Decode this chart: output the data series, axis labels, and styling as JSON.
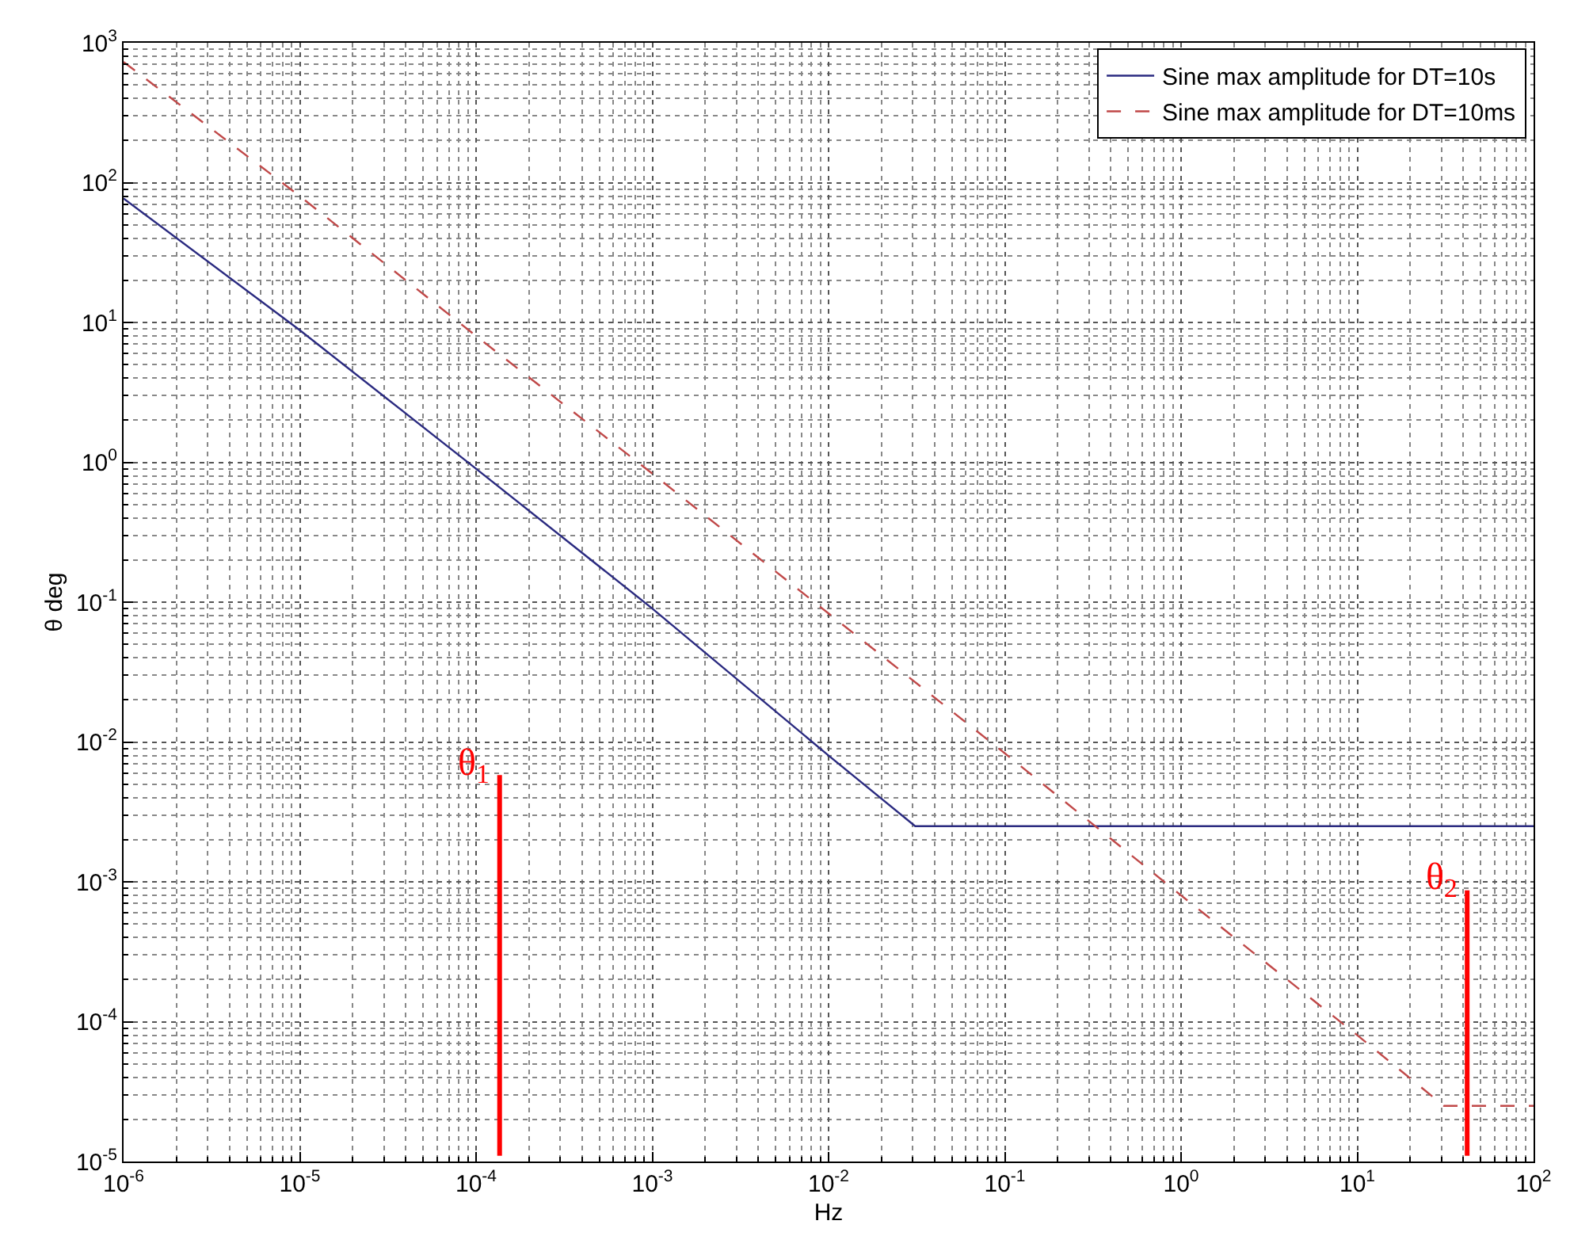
{
  "chart_data": {
    "type": "line",
    "xlabel": "Hz",
    "ylabel": "θ deg",
    "log": "xy",
    "grid": true,
    "legend": "top right",
    "marker": "none",
    "xlim": [
      1e-06,
      100
    ],
    "ylim": [
      1e-05,
      1000
    ],
    "xticks": [
      {
        "value": 1e-06,
        "label": "10$^{-6}$"
      },
      {
        "value": 1e-05,
        "label": "10$^{-5}$"
      },
      {
        "value": 0.0001,
        "label": "10$^{-4}$"
      },
      {
        "value": 0.001,
        "label": "10$^{-3}$"
      },
      {
        "value": 0.01,
        "label": "10$^{-2}$"
      },
      {
        "value": 0.1,
        "label": "10$^{-1}$"
      },
      {
        "value": 1,
        "label": "10$^{0}$"
      },
      {
        "value": 10,
        "label": "10$^{1}$"
      },
      {
        "value": 100,
        "label": "10$^{2}$"
      }
    ],
    "yticks": [
      {
        "value": 1e-05,
        "label": "10$^{-5}$"
      },
      {
        "value": 0.0001,
        "label": "10$^{-4}$"
      },
      {
        "value": 0.001,
        "label": "10$^{-3}$"
      },
      {
        "value": 0.01,
        "label": "10$^{-2}$"
      },
      {
        "value": 0.1,
        "label": "10$^{-1}$"
      },
      {
        "value": 1,
        "label": "10$^{0}$"
      },
      {
        "value": 10,
        "label": "10$^{1}$"
      },
      {
        "value": 100,
        "label": "10$^{2}$"
      },
      {
        "value": 1000,
        "label": "10$^{3}$"
      }
    ],
    "series": [
      {
        "name": "Sine max amplitude for DT=10s",
        "color": "#2a2a80",
        "line_style": "solid",
        "x": [
          1e-06,
          1e-05,
          0.0001,
          0.001,
          0.01,
          0.031,
          100
        ],
        "values": [
          77,
          8.8,
          0.9,
          0.09,
          0.008,
          0.0025,
          0.0025
        ]
      },
      {
        "name": "Sine max amplitude for DT=10ms",
        "color": "#c04848",
        "line_style": "dashed",
        "x": [
          1e-06,
          1e-05,
          0.0001,
          0.001,
          0.01,
          0.1,
          1,
          10,
          31,
          100
        ],
        "values": [
          730,
          80,
          8,
          0.83,
          0.083,
          0.0083,
          0.0008,
          8e-05,
          2.5e-05,
          2.5e-05
        ]
      },
      {
        "color": "#ff0000",
        "line_style": "solid",
        "x": [
          0.000136,
          0.000136
        ],
        "values": [
          1.1e-05,
          0.0058
        ]
      },
      {
        "color": "#ff0000",
        "line_style": "solid",
        "x": [
          42,
          42
        ],
        "values": [
          1.1e-05,
          0.00087
        ]
      }
    ],
    "annotations": [
      {
        "text": "θ$_{1}$",
        "x": 0.000136,
        "y": 0.0058
      },
      {
        "text": "θ$_{2}$",
        "x": 42,
        "y": 0.00087
      }
    ]
  }
}
